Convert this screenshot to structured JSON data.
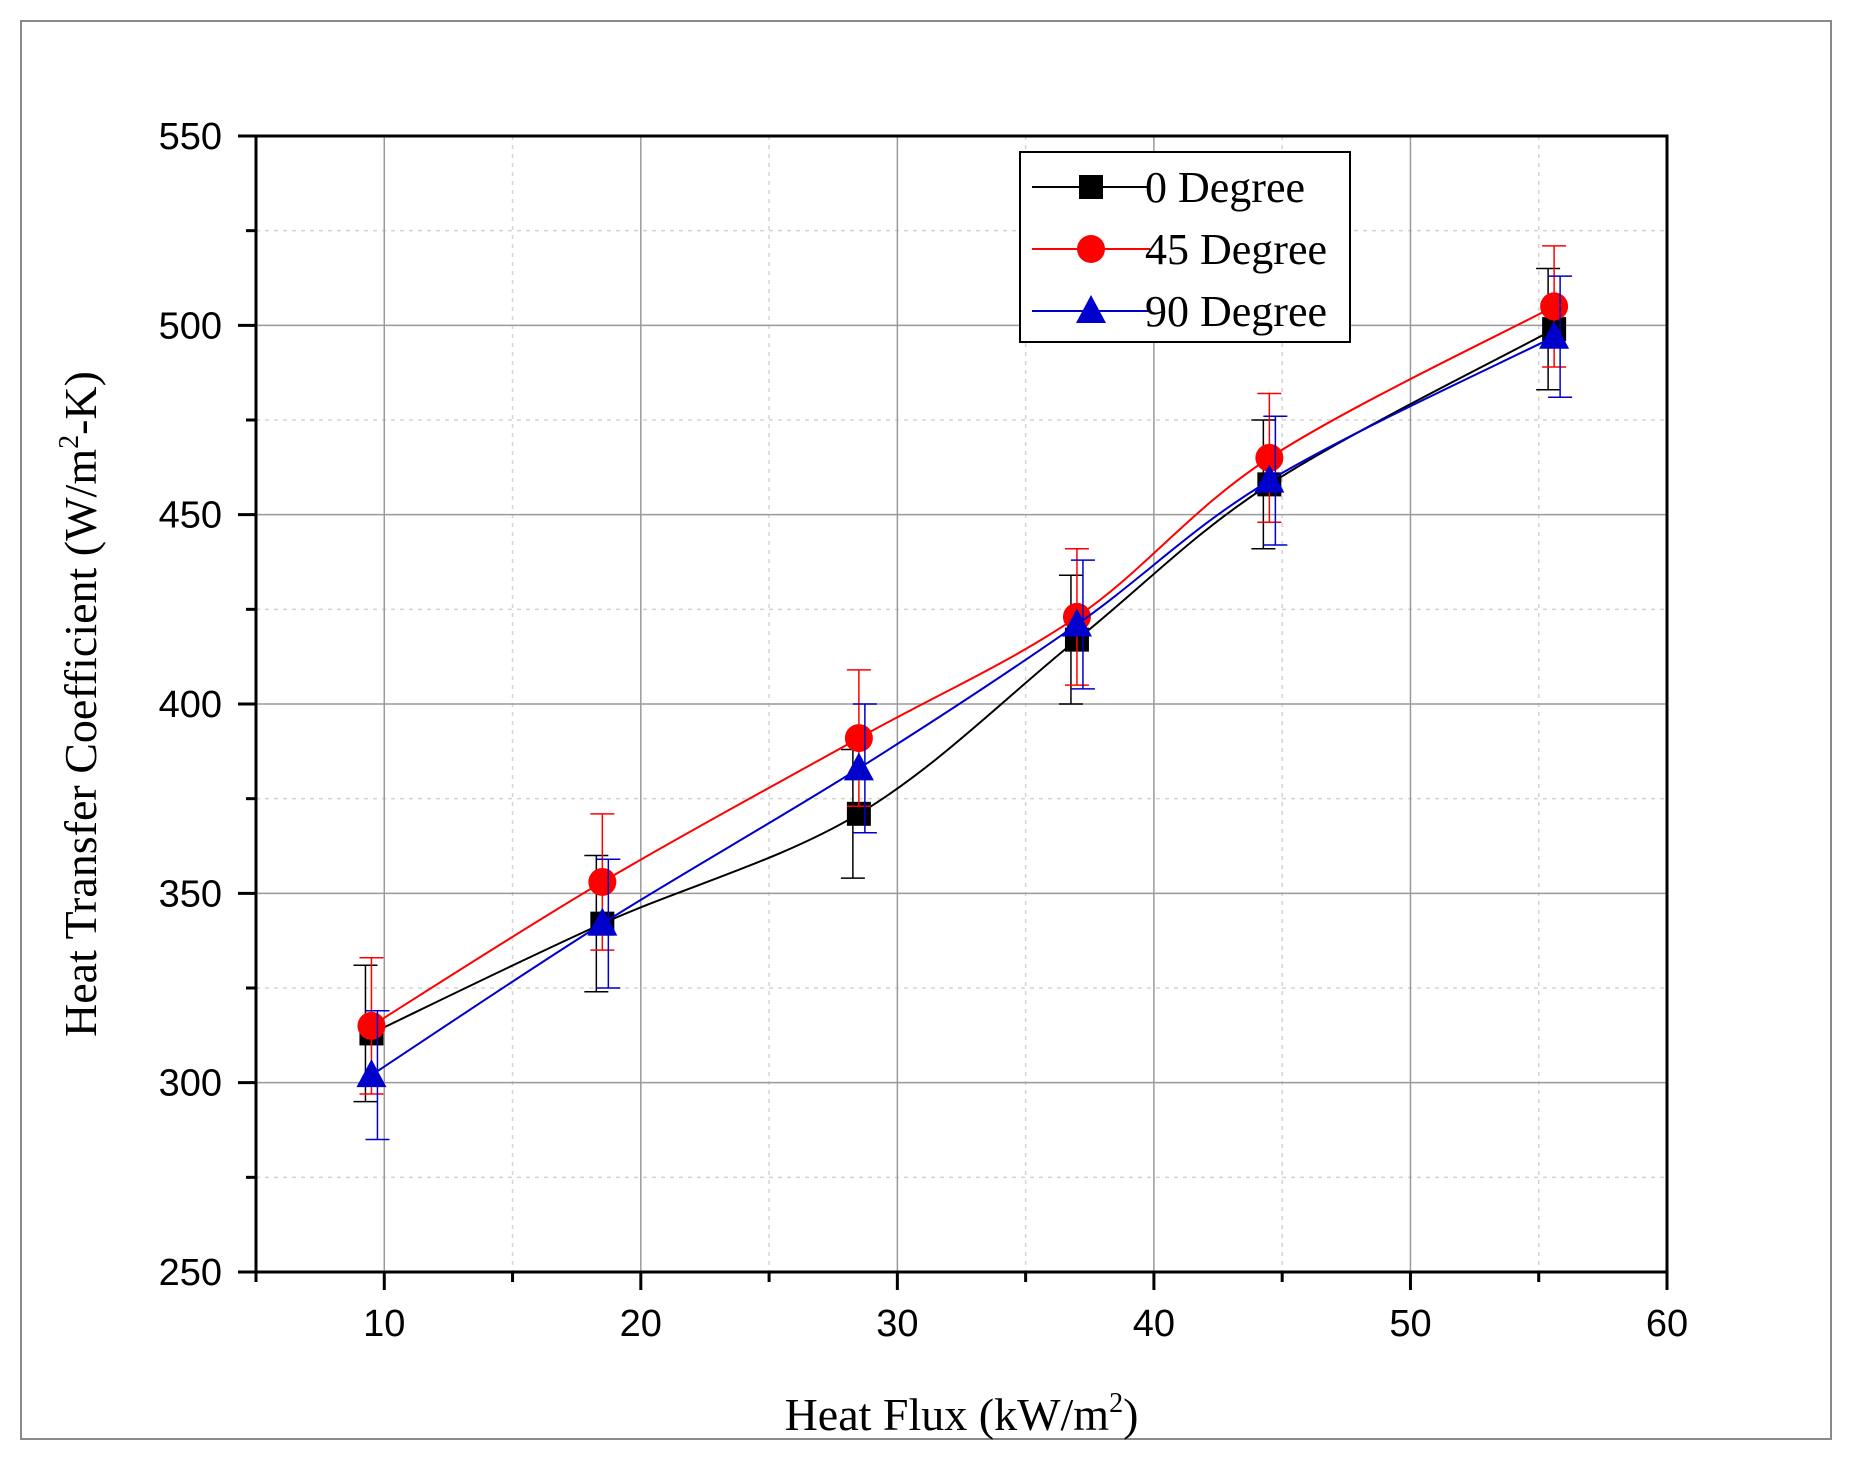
{
  "chart_data": {
    "type": "line",
    "title": "",
    "xlabel": "Heat Flux (kW/m",
    "xlabel_sup": "2",
    "xlabel_tail": ")",
    "ylabel_parts": [
      "Heat Transfer Coefficient (W/m",
      "2",
      "-K)"
    ],
    "xlim": [
      5,
      60
    ],
    "ylim": [
      250,
      550
    ],
    "x_ticks": [
      10,
      20,
      30,
      40,
      50,
      60
    ],
    "y_ticks": [
      250,
      300,
      350,
      400,
      450,
      500,
      550
    ],
    "x_ticks_minor_step": 5,
    "y_ticks_minor_step": 25,
    "grid": true,
    "legend_position": "top-right",
    "series": [
      {
        "name": "0 Degree",
        "color": "#000000",
        "marker": "square",
        "x": [
          9.5,
          18.5,
          28.5,
          37.0,
          44.5,
          55.6
        ],
        "y": [
          313,
          342,
          371,
          417,
          458,
          499
        ],
        "error": [
          18,
          18,
          17,
          17,
          17,
          16
        ]
      },
      {
        "name": "45 Degree",
        "color": "#ff0000",
        "marker": "circle",
        "x": [
          9.5,
          18.5,
          28.5,
          37.0,
          44.5,
          55.6
        ],
        "y": [
          315,
          353,
          391,
          423,
          465,
          505
        ],
        "error": [
          18,
          18,
          18,
          18,
          17,
          16
        ]
      },
      {
        "name": "90 Degree",
        "color": "#0000cc",
        "marker": "triangle",
        "x": [
          9.5,
          18.5,
          28.5,
          37.0,
          44.5,
          55.6
        ],
        "y": [
          302,
          342,
          383,
          421,
          459,
          497
        ],
        "error": [
          17,
          17,
          17,
          17,
          17,
          16
        ]
      }
    ]
  }
}
